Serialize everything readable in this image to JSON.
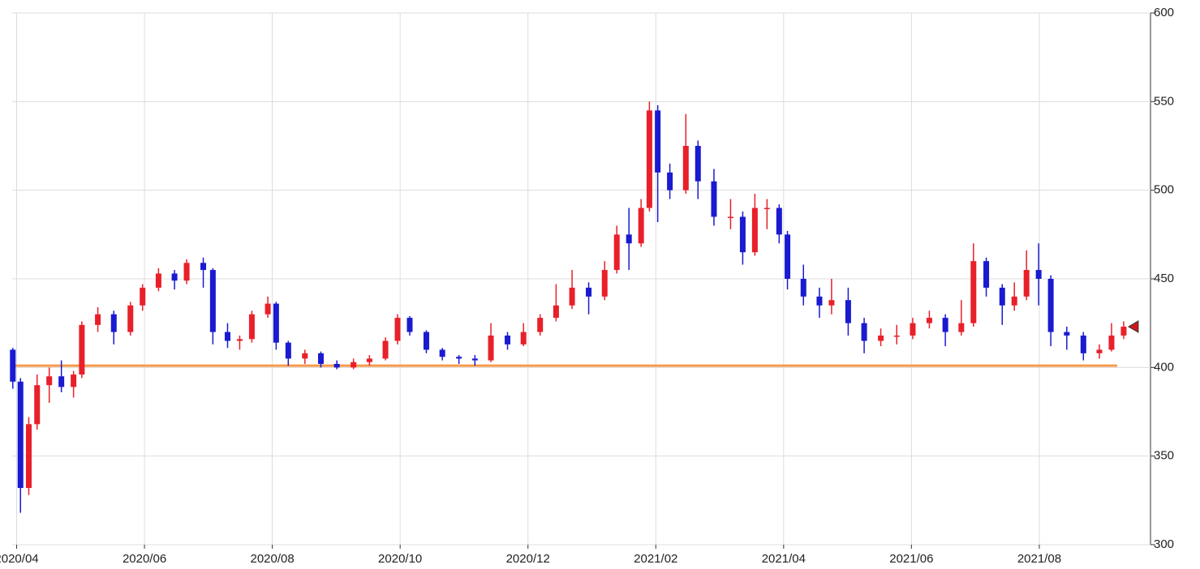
{
  "chart_data": {
    "type": "candlestick",
    "x": [
      -0.06,
      0.06,
      0.19,
      0.32,
      0.51,
      0.7,
      0.89,
      1.02,
      1.27,
      1.52,
      1.78,
      1.97,
      2.22,
      2.47,
      2.66,
      2.92,
      3.07,
      3.3,
      3.49,
      3.68,
      3.93,
      4.06,
      4.25,
      4.51,
      4.76,
      5.01,
      5.27,
      5.52,
      5.77,
      5.96,
      6.15,
      6.41,
      6.66,
      6.92,
      7.17,
      7.42,
      7.68,
      7.93,
      8.19,
      8.44,
      8.69,
      8.95,
      9.2,
      9.39,
      9.58,
      9.77,
      9.9,
      10.03,
      10.22,
      10.47,
      10.66,
      10.91,
      11.17,
      11.36,
      11.55,
      11.74,
      11.93,
      12.06,
      12.31,
      12.56,
      12.75,
      13.01,
      13.26,
      13.52,
      13.77,
      14.02,
      14.28,
      14.53,
      14.78,
      14.97,
      15.17,
      15.42,
      15.61,
      15.8,
      15.99,
      16.18,
      16.43,
      16.69,
      16.94,
      17.13,
      17.32
    ],
    "open": [
      410,
      392,
      332,
      368,
      390,
      395,
      389,
      396,
      424,
      430,
      420,
      435,
      445,
      453,
      449,
      459,
      455,
      420,
      415,
      416,
      430,
      436,
      414,
      405,
      408,
      402,
      400,
      403,
      405,
      415,
      428,
      420,
      410,
      406,
      405,
      404,
      418,
      413,
      420,
      428,
      435,
      445,
      440,
      455,
      475,
      470,
      490,
      545,
      510,
      500,
      525,
      505,
      485,
      485,
      465,
      490,
      490,
      475,
      450,
      440,
      435,
      438,
      425,
      415,
      418,
      418,
      425,
      428,
      420,
      425,
      460,
      445,
      435,
      440,
      455,
      450,
      420,
      418,
      408,
      410,
      418
    ],
    "high": [
      411,
      394,
      372,
      396,
      400,
      404,
      398,
      426,
      434,
      432,
      437,
      447,
      456,
      455,
      461,
      462,
      456,
      425,
      418,
      432,
      440,
      437,
      415,
      410,
      409,
      404,
      405,
      407,
      417,
      430,
      429,
      421,
      411,
      407,
      407,
      425,
      420,
      425,
      430,
      447,
      455,
      448,
      460,
      480,
      490,
      495,
      550,
      548,
      515,
      543,
      528,
      512,
      495,
      488,
      498,
      495,
      492,
      477,
      458,
      445,
      450,
      445,
      428,
      422,
      424,
      428,
      432,
      430,
      438,
      470,
      462,
      447,
      448,
      466,
      470,
      452,
      423,
      420,
      413,
      425,
      426
    ],
    "low": [
      388,
      318,
      328,
      365,
      380,
      386,
      383,
      394,
      420,
      413,
      418,
      432,
      443,
      444,
      447,
      445,
      413,
      411,
      410,
      414,
      428,
      410,
      401,
      402,
      400,
      399,
      399,
      401,
      404,
      413,
      418,
      408,
      404,
      402,
      401,
      403,
      410,
      412,
      418,
      426,
      433,
      430,
      438,
      453,
      455,
      468,
      488,
      482,
      495,
      498,
      495,
      480,
      478,
      458,
      463,
      478,
      470,
      444,
      435,
      428,
      430,
      418,
      408,
      412,
      413,
      416,
      422,
      412,
      418,
      423,
      440,
      424,
      432,
      438,
      435,
      412,
      410,
      404,
      405,
      409,
      416
    ],
    "close": [
      392,
      332,
      368,
      390,
      395,
      389,
      396,
      424,
      430,
      420,
      435,
      445,
      453,
      449,
      459,
      455,
      420,
      415,
      416,
      430,
      436,
      414,
      405,
      408,
      402,
      400,
      403,
      405,
      415,
      428,
      420,
      410,
      406,
      405,
      404,
      418,
      413,
      420,
      428,
      435,
      445,
      440,
      455,
      475,
      470,
      490,
      545,
      510,
      500,
      525,
      505,
      485,
      485,
      465,
      490,
      490,
      475,
      450,
      440,
      435,
      438,
      425,
      415,
      418,
      418,
      425,
      428,
      420,
      425,
      460,
      445,
      435,
      440,
      455,
      450,
      420,
      418,
      408,
      410,
      418,
      423
    ],
    "up_color": "#e8202a",
    "down_color": "#1a1ad0",
    "reference_line": {
      "value": 401,
      "color": "#f79a4a"
    },
    "xlim": [
      -0.07,
      17.74
    ],
    "xticks": [
      {
        "value": 0,
        "label": "2020/04"
      },
      {
        "value": 2,
        "label": "2020/06"
      },
      {
        "value": 4,
        "label": "2020/08"
      },
      {
        "value": 6,
        "label": "2020/10"
      },
      {
        "value": 8,
        "label": "2020/12"
      },
      {
        "value": 10,
        "label": "2021/02"
      },
      {
        "value": 12,
        "label": "2021/04"
      },
      {
        "value": 14,
        "label": "2021/06"
      },
      {
        "value": 16,
        "label": "2021/08"
      }
    ],
    "ylim": [
      300,
      600
    ],
    "yticks": [
      300,
      350,
      400,
      450,
      500,
      550,
      600
    ],
    "grid": true
  }
}
